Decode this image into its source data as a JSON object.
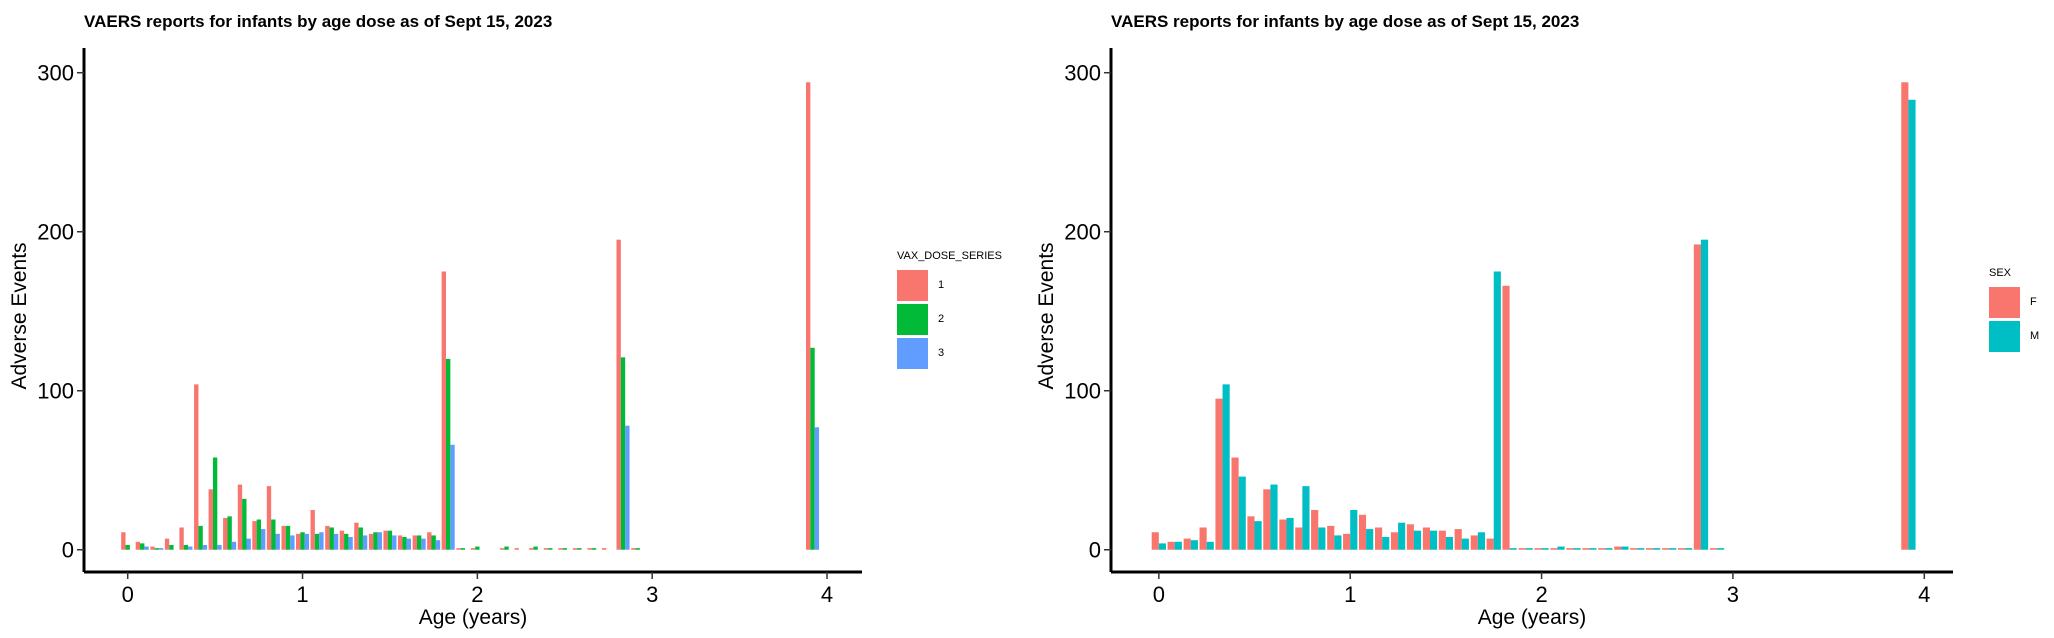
{
  "chart_data": [
    {
      "type": "bar",
      "title": "VAERS reports for infants by age dose as of Sept 15, 2023",
      "xlabel": "Age (years)",
      "ylabel": "Adverse Events",
      "x_ticks": [
        0,
        1,
        2,
        3,
        4
      ],
      "y_ticks": [
        0,
        100,
        200,
        300
      ],
      "xlim": [
        -0.25,
        4.2
      ],
      "ylim": [
        -14,
        308
      ],
      "bar_group_width": 0.083,
      "legend_title": "VAX_DOSE_SERIES",
      "legend_position": "right",
      "grid": false,
      "series": [
        {
          "name": "1",
          "color": "#F8766D"
        },
        {
          "name": "2",
          "color": "#00BA38"
        },
        {
          "name": "3",
          "color": "#619CFF"
        }
      ],
      "x": [
        0.0,
        0.083,
        0.167,
        0.25,
        0.333,
        0.417,
        0.5,
        0.583,
        0.667,
        0.75,
        0.833,
        0.917,
        1.0,
        1.083,
        1.167,
        1.25,
        1.333,
        1.417,
        1.5,
        1.583,
        1.667,
        1.75,
        1.833,
        1.917,
        2.0,
        2.083,
        2.167,
        2.25,
        2.333,
        2.417,
        2.5,
        2.583,
        2.667,
        2.75,
        2.833,
        2.917,
        3.917
      ],
      "values": [
        [
          11,
          5,
          2,
          7,
          14,
          104,
          38,
          20,
          41,
          18,
          40,
          15,
          10,
          25,
          15,
          12,
          17,
          10,
          12,
          9,
          9,
          11,
          175,
          1,
          1,
          0,
          1,
          1,
          1,
          1,
          1,
          1,
          1,
          1,
          195,
          1,
          294
        ],
        [
          3,
          4,
          1,
          3,
          3,
          15,
          58,
          21,
          32,
          19,
          19,
          15,
          11,
          10,
          14,
          10,
          14,
          11,
          12,
          8,
          9,
          9,
          120,
          1,
          2,
          0,
          2,
          0,
          2,
          1,
          1,
          1,
          1,
          0,
          121,
          1,
          127
        ],
        [
          0,
          2,
          1,
          0,
          2,
          3,
          3,
          5,
          7,
          13,
          10,
          9,
          10,
          11,
          10,
          8,
          9,
          11,
          9,
          7,
          7,
          6,
          66,
          0,
          0,
          0,
          0,
          0,
          0,
          0,
          0,
          0,
          0,
          0,
          78,
          0,
          77
        ]
      ]
    },
    {
      "type": "bar",
      "title": "VAERS reports for infants by age dose as of Sept 15, 2023",
      "xlabel": "Age (years)",
      "ylabel": "Adverse Events",
      "x_ticks": [
        0,
        1,
        2,
        3,
        4
      ],
      "y_ticks": [
        0,
        100,
        200,
        300
      ],
      "xlim": [
        -0.25,
        4.15
      ],
      "ylim": [
        -14,
        308
      ],
      "bar_group_width": 0.083,
      "legend_title": "SEX",
      "legend_position": "right",
      "grid": false,
      "series": [
        {
          "name": "F",
          "color": "#F8766D"
        },
        {
          "name": "M",
          "color": "#00BFC4"
        }
      ],
      "x": [
        0.0,
        0.083,
        0.167,
        0.25,
        0.333,
        0.417,
        0.5,
        0.583,
        0.667,
        0.75,
        0.833,
        0.917,
        1.0,
        1.083,
        1.167,
        1.25,
        1.333,
        1.417,
        1.5,
        1.583,
        1.667,
        1.75,
        1.833,
        1.917,
        2.0,
        2.083,
        2.167,
        2.25,
        2.333,
        2.417,
        2.5,
        2.583,
        2.667,
        2.75,
        2.833,
        2.917,
        3.917
      ],
      "values": [
        [
          11,
          5,
          7,
          14,
          95,
          58,
          21,
          38,
          19,
          14,
          25,
          15,
          10,
          22,
          14,
          11,
          16,
          14,
          12,
          13,
          9,
          7,
          166,
          1,
          1,
          1,
          1,
          1,
          1,
          2,
          1,
          1,
          1,
          1,
          192,
          1,
          294
        ],
        [
          4,
          5,
          6,
          5,
          104,
          46,
          18,
          41,
          20,
          40,
          14,
          9,
          25,
          13,
          8,
          17,
          12,
          12,
          8,
          7,
          11,
          175,
          1,
          1,
          1,
          2,
          1,
          1,
          1,
          2,
          1,
          1,
          1,
          1,
          195,
          1,
          283
        ]
      ]
    }
  ]
}
